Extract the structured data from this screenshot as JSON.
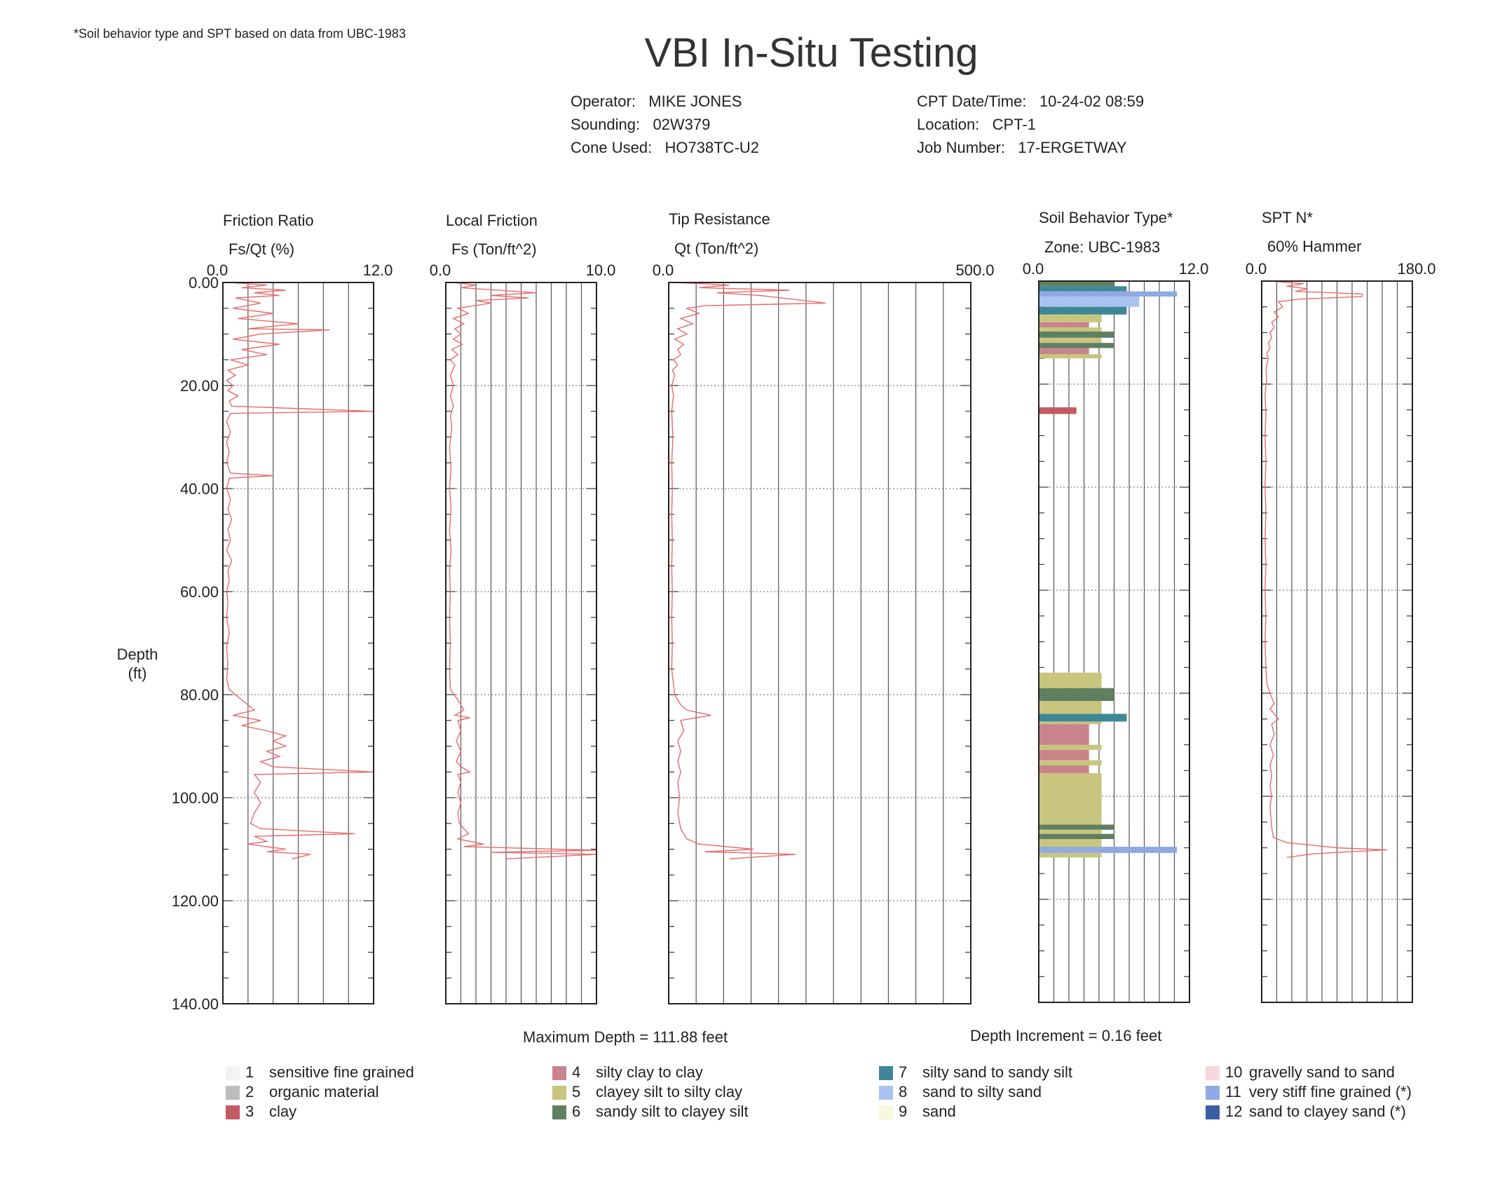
{
  "note": "*Soil behavior type and SPT based on data from UBC-1983",
  "title": "VBI In-Situ Testing",
  "meta": {
    "operator_label": "Operator:",
    "operator": "MIKE JONES",
    "sounding_label": "Sounding:",
    "sounding": "02W379",
    "cone_label": "Cone Used:",
    "cone": "HO738TC-U2",
    "datetime_label": "CPT Date/Time:",
    "datetime": "10-24-02 08:59",
    "location_label": "Location:",
    "location": "CPT-1",
    "job_label": "Job Number:",
    "job": "17-ERGETWAY"
  },
  "depth_axis": {
    "label_line1": "Depth",
    "label_line2": "(ft)",
    "ticks": [
      "0.00",
      "20.00",
      "40.00",
      "60.00",
      "80.00",
      "100.00",
      "120.00",
      "140.00"
    ]
  },
  "footer": {
    "max_depth": "Maximum Depth = 111.88 feet",
    "depth_increment": "Depth Increment = 0.16 feet"
  },
  "chart_data": [
    {
      "type": "line",
      "title": "Friction Ratio",
      "xlabel": "Fs/Qt (%)",
      "xlim": [
        0,
        12
      ],
      "xlim_labels": [
        "0.0",
        "12.0"
      ],
      "ylim": [
        0,
        140
      ],
      "ylabel": "Depth (ft)",
      "color": "#e86a6a",
      "points": [
        [
          0.5,
          0
        ],
        [
          3.5,
          0.5
        ],
        [
          1.5,
          1
        ],
        [
          5.0,
          1.5
        ],
        [
          2.5,
          2
        ],
        [
          4.5,
          2.5
        ],
        [
          1.0,
          3
        ],
        [
          3.0,
          4
        ],
        [
          0.8,
          5
        ],
        [
          4.0,
          6
        ],
        [
          1.2,
          7
        ],
        [
          6.0,
          8
        ],
        [
          2.0,
          9
        ],
        [
          8.5,
          9.2
        ],
        [
          3.0,
          10
        ],
        [
          0.8,
          11
        ],
        [
          4.5,
          12
        ],
        [
          1.5,
          13
        ],
        [
          3.5,
          14
        ],
        [
          0.6,
          15
        ],
        [
          2.0,
          16
        ],
        [
          0.4,
          17
        ],
        [
          1.0,
          18
        ],
        [
          0.3,
          19
        ],
        [
          0.8,
          20
        ],
        [
          0.4,
          21
        ],
        [
          1.2,
          22
        ],
        [
          0.5,
          23
        ],
        [
          0.7,
          24
        ],
        [
          12.0,
          25
        ],
        [
          0.6,
          25.4
        ],
        [
          0.3,
          27
        ],
        [
          0.6,
          29
        ],
        [
          0.3,
          31
        ],
        [
          0.5,
          33
        ],
        [
          0.3,
          35
        ],
        [
          0.6,
          37
        ],
        [
          4.0,
          37.5
        ],
        [
          0.5,
          38
        ],
        [
          0.3,
          40
        ],
        [
          0.6,
          42
        ],
        [
          0.4,
          44
        ],
        [
          0.7,
          46
        ],
        [
          0.4,
          48
        ],
        [
          0.6,
          50
        ],
        [
          0.3,
          52
        ],
        [
          0.7,
          54
        ],
        [
          0.4,
          56
        ],
        [
          0.5,
          58
        ],
        [
          0.3,
          60
        ],
        [
          0.4,
          62
        ],
        [
          0.3,
          65
        ],
        [
          0.5,
          68
        ],
        [
          0.3,
          71
        ],
        [
          0.4,
          74
        ],
        [
          0.3,
          77
        ],
        [
          0.5,
          79
        ],
        [
          1.5,
          81
        ],
        [
          2.5,
          83
        ],
        [
          0.8,
          84
        ],
        [
          3.0,
          85
        ],
        [
          1.5,
          86
        ],
        [
          3.5,
          87
        ],
        [
          5.0,
          88
        ],
        [
          4.0,
          89
        ],
        [
          5.0,
          90
        ],
        [
          3.5,
          91
        ],
        [
          4.5,
          92
        ],
        [
          3.0,
          93
        ],
        [
          4.0,
          94
        ],
        [
          12.0,
          95
        ],
        [
          2.5,
          95.5
        ],
        [
          3.0,
          97
        ],
        [
          2.5,
          99
        ],
        [
          3.0,
          101
        ],
        [
          2.5,
          103
        ],
        [
          2.2,
          105
        ],
        [
          3.0,
          106
        ],
        [
          10.5,
          107
        ],
        [
          2.5,
          107.5
        ],
        [
          3.5,
          108.5
        ],
        [
          2.0,
          109
        ],
        [
          5.0,
          110
        ],
        [
          3.5,
          110.5
        ],
        [
          7.0,
          111
        ],
        [
          5.5,
          111.88
        ]
      ]
    },
    {
      "type": "line",
      "title": "Local Friction",
      "xlabel": "Fs (Ton/ft^2)",
      "xlim": [
        0,
        10
      ],
      "xlim_labels": [
        "0.0",
        "10.0"
      ],
      "ylim": [
        0,
        140
      ],
      "color": "#e86a6a",
      "points": [
        [
          0.5,
          0
        ],
        [
          2.0,
          0.5
        ],
        [
          1.0,
          1
        ],
        [
          6.0,
          2
        ],
        [
          3.0,
          2.5
        ],
        [
          5.5,
          3
        ],
        [
          2.0,
          3.5
        ],
        [
          3.0,
          4
        ],
        [
          0.8,
          5
        ],
        [
          1.5,
          6
        ],
        [
          0.5,
          7
        ],
        [
          1.2,
          8
        ],
        [
          0.6,
          9
        ],
        [
          1.0,
          10
        ],
        [
          0.5,
          11
        ],
        [
          1.1,
          12
        ],
        [
          0.4,
          13
        ],
        [
          0.8,
          14
        ],
        [
          0.3,
          15
        ],
        [
          0.6,
          16
        ],
        [
          0.3,
          18
        ],
        [
          0.5,
          20
        ],
        [
          0.3,
          22
        ],
        [
          0.5,
          24
        ],
        [
          0.3,
          26
        ],
        [
          0.4,
          28
        ],
        [
          0.25,
          32
        ],
        [
          0.35,
          36
        ],
        [
          0.25,
          40
        ],
        [
          0.35,
          44
        ],
        [
          0.25,
          48
        ],
        [
          0.35,
          52
        ],
        [
          0.25,
          56
        ],
        [
          0.3,
          60
        ],
        [
          0.25,
          65
        ],
        [
          0.3,
          70
        ],
        [
          0.25,
          75
        ],
        [
          0.3,
          79
        ],
        [
          0.8,
          81
        ],
        [
          1.2,
          83
        ],
        [
          0.6,
          84
        ],
        [
          1.6,
          84.5
        ],
        [
          0.8,
          85
        ],
        [
          1.0,
          87
        ],
        [
          0.7,
          89
        ],
        [
          1.0,
          91
        ],
        [
          0.7,
          93
        ],
        [
          1.0,
          94
        ],
        [
          1.6,
          95
        ],
        [
          0.8,
          95.5
        ],
        [
          1.0,
          97
        ],
        [
          0.8,
          99
        ],
        [
          1.0,
          101
        ],
        [
          0.8,
          103
        ],
        [
          0.9,
          105
        ],
        [
          1.5,
          107
        ],
        [
          0.8,
          108
        ],
        [
          2.5,
          109
        ],
        [
          1.2,
          109.5
        ],
        [
          10.0,
          110.2
        ],
        [
          3.0,
          110.6
        ],
        [
          10.0,
          111
        ],
        [
          4.0,
          111.88
        ]
      ]
    },
    {
      "type": "line",
      "title": "Tip Resistance",
      "xlabel": "Qt (Ton/ft^2)",
      "xlim": [
        0,
        500
      ],
      "xlim_labels": [
        "0.0",
        "500.0"
      ],
      "ylim": [
        0,
        140
      ],
      "color": "#e86a6a",
      "points": [
        [
          10,
          0
        ],
        [
          100,
          0.5
        ],
        [
          50,
          1
        ],
        [
          200,
          1.5
        ],
        [
          80,
          2
        ],
        [
          150,
          2.5
        ],
        [
          260,
          4
        ],
        [
          60,
          4.5
        ],
        [
          30,
          5
        ],
        [
          50,
          6
        ],
        [
          20,
          7
        ],
        [
          40,
          8
        ],
        [
          15,
          9
        ],
        [
          30,
          10
        ],
        [
          10,
          11
        ],
        [
          25,
          12
        ],
        [
          15,
          13
        ],
        [
          20,
          14
        ],
        [
          8,
          15
        ],
        [
          15,
          16
        ],
        [
          6,
          17
        ],
        [
          10,
          18
        ],
        [
          5,
          20
        ],
        [
          8,
          22
        ],
        [
          5,
          25
        ],
        [
          7,
          30
        ],
        [
          5,
          35
        ],
        [
          6,
          40
        ],
        [
          5,
          45
        ],
        [
          6,
          50
        ],
        [
          5,
          55
        ],
        [
          6,
          60
        ],
        [
          5,
          65
        ],
        [
          6,
          70
        ],
        [
          5,
          75
        ],
        [
          8,
          78
        ],
        [
          10,
          80
        ],
        [
          20,
          82
        ],
        [
          30,
          83
        ],
        [
          70,
          84
        ],
        [
          20,
          85
        ],
        [
          25,
          87
        ],
        [
          15,
          89
        ],
        [
          20,
          91
        ],
        [
          15,
          93
        ],
        [
          20,
          95
        ],
        [
          15,
          97
        ],
        [
          18,
          100
        ],
        [
          15,
          103
        ],
        [
          20,
          106
        ],
        [
          30,
          108
        ],
        [
          50,
          109
        ],
        [
          140,
          110
        ],
        [
          60,
          110.5
        ],
        [
          210,
          111
        ],
        [
          100,
          111.88
        ]
      ]
    },
    {
      "type": "bar",
      "title": "Soil Behavior Type*",
      "xlabel": "Zone: UBC-1983",
      "xlim": [
        0,
        12
      ],
      "xlim_labels": [
        "0.0",
        "12.0"
      ],
      "ylim": [
        0,
        140
      ],
      "bars": [
        {
          "from": 0,
          "to": 1.0,
          "zone": 6
        },
        {
          "from": 1.0,
          "to": 2.0,
          "zone": 7
        },
        {
          "from": 2.0,
          "to": 3.0,
          "zone": 11
        },
        {
          "from": 3.0,
          "to": 3.8,
          "zone": 8
        },
        {
          "from": 3.8,
          "to": 5.0,
          "zone": 8
        },
        {
          "from": 5.0,
          "to": 6.5,
          "zone": 7
        },
        {
          "from": 6.5,
          "to": 8.0,
          "zone": 5
        },
        {
          "from": 8.0,
          "to": 9.0,
          "zone": 4
        },
        {
          "from": 9.0,
          "to": 9.8,
          "zone": 5
        },
        {
          "from": 9.8,
          "to": 11.0,
          "zone": 6
        },
        {
          "from": 11.0,
          "to": 12.0,
          "zone": 5
        },
        {
          "from": 12.0,
          "to": 13.0,
          "zone": 6
        },
        {
          "from": 13.0,
          "to": 14.2,
          "zone": 4
        },
        {
          "from": 14.2,
          "to": 15.0,
          "zone": 5
        },
        {
          "from": 24.5,
          "to": 25.8,
          "zone": 3
        },
        {
          "from": 76.0,
          "to": 79.0,
          "zone": 5
        },
        {
          "from": 79.0,
          "to": 81.5,
          "zone": 6
        },
        {
          "from": 81.5,
          "to": 84.0,
          "zone": 5
        },
        {
          "from": 84.0,
          "to": 85.5,
          "zone": 7
        },
        {
          "from": 85.5,
          "to": 86.0,
          "zone": 5
        },
        {
          "from": 86.0,
          "to": 90.0,
          "zone": 4
        },
        {
          "from": 90.0,
          "to": 91.0,
          "zone": 5
        },
        {
          "from": 91.0,
          "to": 93.0,
          "zone": 4
        },
        {
          "from": 93.0,
          "to": 94.0,
          "zone": 5
        },
        {
          "from": 94.0,
          "to": 95.5,
          "zone": 4
        },
        {
          "from": 95.5,
          "to": 105.5,
          "zone": 5
        },
        {
          "from": 105.5,
          "to": 106.5,
          "zone": 6
        },
        {
          "from": 106.5,
          "to": 107.3,
          "zone": 5
        },
        {
          "from": 107.3,
          "to": 108.3,
          "zone": 6
        },
        {
          "from": 108.3,
          "to": 109.8,
          "zone": 5
        },
        {
          "from": 109.8,
          "to": 111.0,
          "zone": 11
        },
        {
          "from": 111.0,
          "to": 111.88,
          "zone": 5
        }
      ]
    },
    {
      "type": "line",
      "title": "SPT N*",
      "xlabel": "60% Hammer",
      "xlim": [
        0,
        180
      ],
      "xlim_labels": [
        "0.0",
        "180.0"
      ],
      "ylim": [
        0,
        140
      ],
      "color": "#e86a6a",
      "points": [
        [
          10,
          0
        ],
        [
          50,
          0.5
        ],
        [
          30,
          1
        ],
        [
          55,
          1.5
        ],
        [
          40,
          2
        ],
        [
          120,
          2.5
        ],
        [
          120,
          3
        ],
        [
          45,
          3.5
        ],
        [
          20,
          4
        ],
        [
          25,
          5
        ],
        [
          15,
          6
        ],
        [
          20,
          7
        ],
        [
          12,
          8
        ],
        [
          15,
          9
        ],
        [
          10,
          10
        ],
        [
          12,
          11
        ],
        [
          8,
          12
        ],
        [
          10,
          13
        ],
        [
          6,
          14
        ],
        [
          8,
          15
        ],
        [
          5,
          17
        ],
        [
          6,
          19
        ],
        [
          4,
          22
        ],
        [
          5,
          26
        ],
        [
          4,
          30
        ],
        [
          5,
          35
        ],
        [
          4,
          40
        ],
        [
          5,
          45
        ],
        [
          4,
          50
        ],
        [
          5,
          55
        ],
        [
          4,
          60
        ],
        [
          5,
          65
        ],
        [
          4,
          70
        ],
        [
          5,
          75
        ],
        [
          6,
          78
        ],
        [
          10,
          80
        ],
        [
          15,
          82
        ],
        [
          10,
          83
        ],
        [
          20,
          85
        ],
        [
          12,
          86
        ],
        [
          15,
          88
        ],
        [
          10,
          90
        ],
        [
          14,
          92
        ],
        [
          10,
          94
        ],
        [
          12,
          96
        ],
        [
          10,
          98
        ],
        [
          12,
          100
        ],
        [
          10,
          102
        ],
        [
          11,
          104
        ],
        [
          12,
          106
        ],
        [
          14,
          108
        ],
        [
          30,
          109
        ],
        [
          90,
          110
        ],
        [
          150,
          110.4
        ],
        [
          100,
          110.8
        ],
        [
          60,
          111.2
        ],
        [
          30,
          111.88
        ]
      ]
    }
  ],
  "zone_colors": {
    "1": "#f3f3f3",
    "2": "#bdbdbd",
    "3": "#c25b64",
    "4": "#c9838b",
    "5": "#c8c57e",
    "6": "#5f8060",
    "7": "#3f8796",
    "8": "#a9c3ee",
    "9": "#f9f7dc",
    "10": "#f8d7dc",
    "11": "#8fa9e3",
    "12": "#3a5ea3"
  },
  "legend": [
    {
      "zone": "1",
      "num": "1",
      "label": "sensitive fine grained"
    },
    {
      "zone": "2",
      "num": "2",
      "label": "organic material"
    },
    {
      "zone": "3",
      "num": "3",
      "label": "clay"
    },
    {
      "zone": "4",
      "num": "4",
      "label": "silty clay to clay"
    },
    {
      "zone": "5",
      "num": "5",
      "label": "clayey silt to silty clay"
    },
    {
      "zone": "6",
      "num": "6",
      "label": "sandy silt to clayey silt"
    },
    {
      "zone": "7",
      "num": "7",
      "label": "silty sand to sandy silt"
    },
    {
      "zone": "8",
      "num": "8",
      "label": "sand to silty sand"
    },
    {
      "zone": "9",
      "num": "9",
      "label": "sand"
    },
    {
      "zone": "10",
      "num": "10",
      "label": "gravelly sand to sand"
    },
    {
      "zone": "11",
      "num": "11",
      "label": "very stiff fine grained (*)"
    },
    {
      "zone": "12",
      "num": "12",
      "label": "sand to clayey sand (*)"
    }
  ]
}
